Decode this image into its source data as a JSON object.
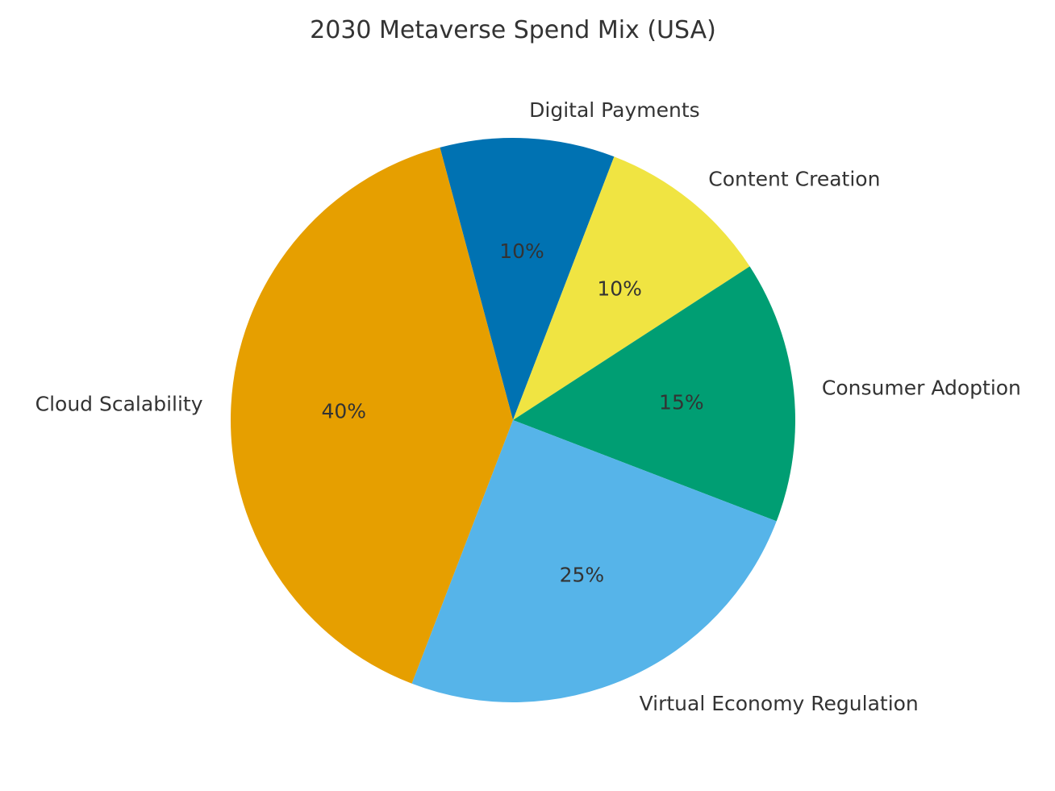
{
  "chart_data": {
    "type": "pie",
    "title": "2030 Metaverse Spend Mix (USA)",
    "start_angle_deg": 105,
    "direction": "clockwise",
    "slices": [
      {
        "label": "Digital Payments",
        "value": 10,
        "pct_label": "10%",
        "color": "#0072B2"
      },
      {
        "label": "Content Creation",
        "value": 10,
        "pct_label": "10%",
        "color": "#F0E442"
      },
      {
        "label": "Consumer Adoption",
        "value": 15,
        "pct_label": "15%",
        "color": "#009E73"
      },
      {
        "label": "Virtual Economy Regulation",
        "value": 25,
        "pct_label": "25%",
        "color": "#56B4E9"
      },
      {
        "label": "Cloud Scalability",
        "value": 40,
        "pct_label": "40%",
        "color": "#E69F00"
      }
    ]
  }
}
